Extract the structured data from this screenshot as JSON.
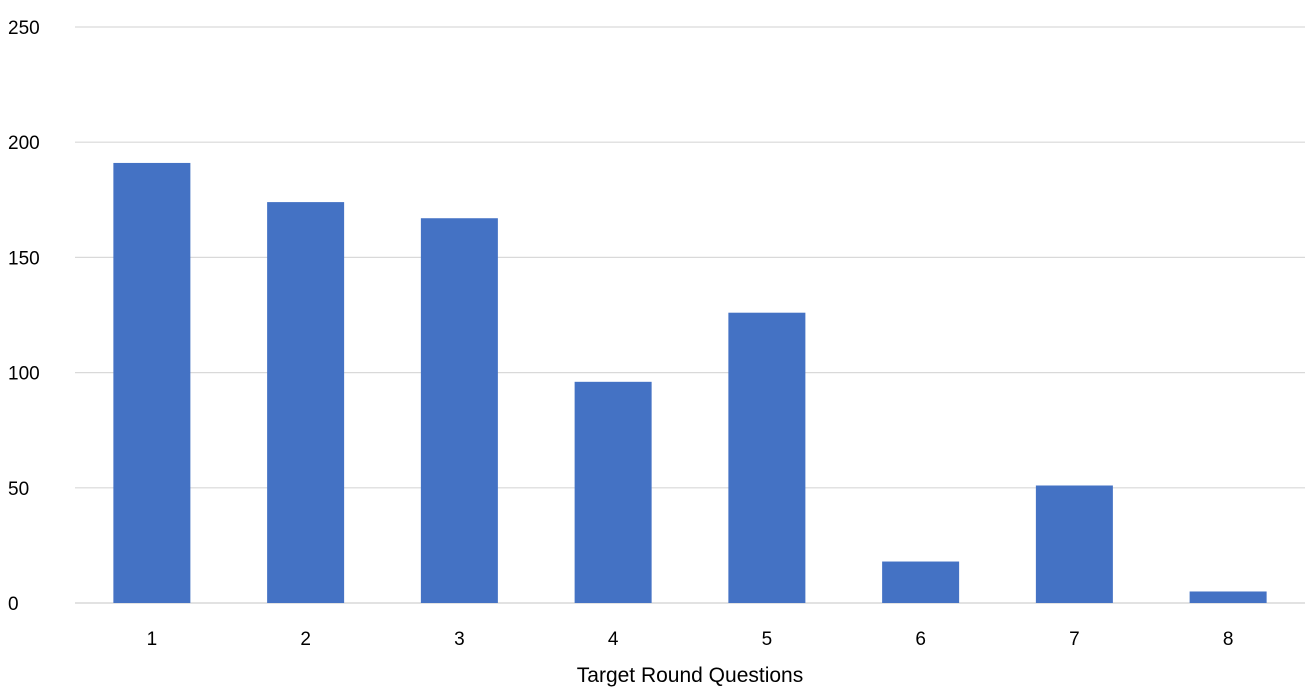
{
  "chart_data": {
    "type": "bar",
    "title": "",
    "xlabel": "Target Round Questions",
    "ylabel": "",
    "categories": [
      "1",
      "2",
      "3",
      "4",
      "5",
      "6",
      "7",
      "8"
    ],
    "values": [
      191,
      174,
      167,
      96,
      126,
      18,
      51,
      5
    ],
    "ylim": [
      0,
      250
    ],
    "yticks": [
      "0",
      "50",
      "100",
      "150",
      "200",
      "250"
    ],
    "grid": true,
    "legend": "none",
    "bar_color": "#4472C4",
    "grid_color": "#D9D9D9"
  }
}
